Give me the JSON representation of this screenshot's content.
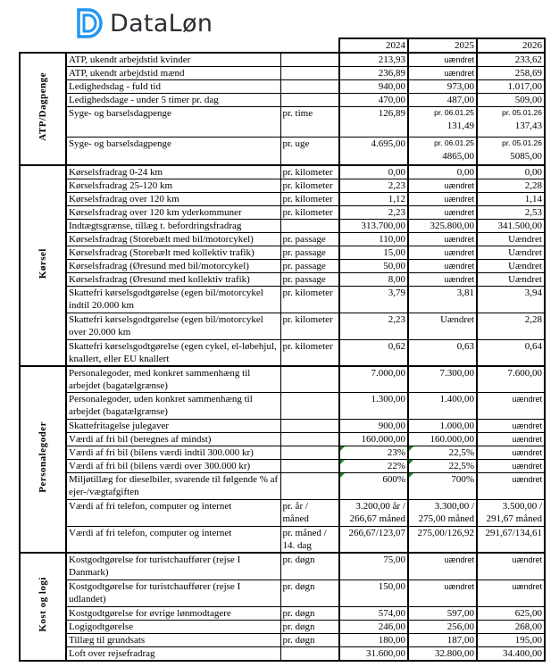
{
  "logo": {
    "text": "DataLøn",
    "brand_color": "#2196f3"
  },
  "header": {
    "years": [
      "2024",
      "2025",
      "2026"
    ]
  },
  "sections": [
    {
      "label": "ATP/Dagpenge",
      "rows": [
        {
          "desc": "ATP, ukendt arbejdstid kvinder",
          "unit": "",
          "v": [
            "213,93",
            "uændret",
            "233,62"
          ]
        },
        {
          "desc": "ATP, ukendt arbejdstid mænd",
          "unit": "",
          "v": [
            "236,89",
            "uændret",
            "258,69"
          ]
        },
        {
          "desc": "Ledighedsdag - fuld tid",
          "unit": "",
          "v": [
            "940,00",
            "973,00",
            "1.017,00"
          ]
        },
        {
          "desc": "Ledighedsdage - under 5 timer pr. dag",
          "unit": "",
          "v": [
            "470,00",
            "487,00",
            "509,00"
          ]
        },
        {
          "desc": "Syge- og barselsdagpenge",
          "unit": "pr. time",
          "v": [
            "126,89",
            {
              "note": "pr. 06.01.25",
              "value": "131,49"
            },
            {
              "note": "pr. 05.01.26",
              "value": "137,43"
            }
          ],
          "h": 34
        },
        {
          "desc": "Syge- og barselsdagpenge",
          "unit": "pr. uge",
          "v": [
            "4.695,00",
            {
              "note": "pr. 06.01.25",
              "value": "4865,00"
            },
            {
              "note": "pr. 05.01.26",
              "value": "5085,00"
            }
          ],
          "h": 31
        }
      ]
    },
    {
      "label": "Kørsel",
      "rows": [
        {
          "desc": "Kørselsfradrag 0-24 km",
          "unit": "pr. kilometer",
          "v": [
            "0,00",
            "0,00",
            "0,00"
          ]
        },
        {
          "desc": "Kørselsfradrag 25-120 km",
          "unit": "pr. kilometer",
          "v": [
            "2,23",
            "uændret",
            "2,28"
          ]
        },
        {
          "desc": "Kørselsfradrag over 120 km",
          "unit": "pr. kilometer",
          "v": [
            "1,12",
            "uændret",
            "1,14"
          ]
        },
        {
          "desc": "Kørselsfradrag over 120 km yderkommuner",
          "unit": "pr. kilometer",
          "v": [
            "2,23",
            "uændret",
            "2,53"
          ]
        },
        {
          "desc": "Indtægtsgrænse, tillæg t. befordringsfradrag",
          "unit": "",
          "v": [
            "313.700,00",
            "325.800,00",
            "341.500,00"
          ]
        },
        {
          "desc": "Kørselsfradrag (Storebælt med bil/motorcykel)",
          "unit": "pr. passage",
          "v": [
            "110,00",
            "uændret",
            "Uændret"
          ]
        },
        {
          "desc": "Kørselsfradrag (Storebælt med kollektiv trafik)",
          "unit": "pr. passage",
          "v": [
            "15,00",
            "uændret",
            "Uændret"
          ]
        },
        {
          "desc": "Kørselsfradrag (Øresund med bil/motorcykel)",
          "unit": "pr. passage",
          "v": [
            "50,00",
            "uændret",
            "Uændret"
          ]
        },
        {
          "desc": "Kørselsfradrag (Øresund med kollektiv trafik)",
          "unit": "pr. passage",
          "v": [
            "8,00",
            "uændret",
            "Uændret"
          ]
        },
        {
          "desc": "Skattefri kørselsgodtgørelse (egen bil/motorcykel indtil 20.000 km",
          "unit": "pr. kilometer",
          "v": [
            "3,79",
            "3,81",
            "3,94"
          ],
          "h": 30
        },
        {
          "desc": "Skattefri kørselsgodtgørelse (egen bil/motorcykel over 20.000 km",
          "unit": "pr. kilometer",
          "v": [
            "2,23",
            "Uændret",
            "2,28"
          ],
          "h": 30
        },
        {
          "desc": "Skattefri kørselsgodtgørelse (egen cykel, el-løbehjul, knallert, eller EU knallert",
          "unit": "pr. kilometer",
          "v": [
            "0,62",
            "0,63",
            "0,64"
          ],
          "h": 28
        }
      ]
    },
    {
      "label": "Personalegoder",
      "rows": [
        {
          "desc": "Personalegoder, med konkret sammenhæng til arbejdet (bagatælgrænse)",
          "unit": "",
          "v": [
            "7.000,00",
            "7.300,00",
            "7.600,00"
          ],
          "h": 30
        },
        {
          "desc": "Personalegoder, uden konkret sammenhæng til arbejdet (bagatælgrænse)",
          "unit": "",
          "v": [
            "1.300,00",
            "1.400,00",
            "uændret"
          ],
          "h": 30
        },
        {
          "desc": "Skattefritagelse julegaver",
          "unit": "",
          "v": [
            "900,00",
            "1.000,00",
            "uændret"
          ]
        },
        {
          "desc": "Værdi af fri bil (beregnes af mindst)",
          "unit": "",
          "v": [
            "160.000,00",
            "160.000,00",
            "uændret"
          ]
        },
        {
          "desc": "Værdi af fri bil (bilens værdi indtil 300.000 kr)",
          "unit": "",
          "v": [
            "23%",
            "22,5%",
            "uændret"
          ],
          "flag": true
        },
        {
          "desc": "Værdi af fri bil (bilens værdi over 300.000 kr)",
          "unit": "",
          "v": [
            "22%",
            "22,5%",
            "uændret"
          ],
          "flag": true
        },
        {
          "desc": "Miljøtillæg for dieselbiler, svarende til følgende % af ejer-/vægtafgiften",
          "unit": "",
          "v": [
            "600%",
            "700%",
            "uændret"
          ],
          "flag": true,
          "h": 30
        },
        {
          "desc": "Værdi af fri telefon, computer og internet",
          "unit": "pr. år /\nmåned",
          "v": [
            "3.200,00 år  /\n266,67 måned",
            "3.300,00 /\n275,00 måned",
            "3.500,00 /\n291,67 måned"
          ],
          "h": 30
        },
        {
          "desc": "Værdi af fri telefon, computer og internet",
          "unit": "pr. måned /\n14. dag",
          "v": [
            "266,67/123,07",
            "275,00/126,92",
            "291,67/134,61"
          ],
          "h": 28
        }
      ]
    },
    {
      "label": "Kost og logi",
      "rows": [
        {
          "desc": "Kostgodtgørelse for turistchauffører (rejse I Danmark)",
          "unit": "pr. døgn",
          "v": [
            "75,00",
            "uændret",
            "uændret"
          ],
          "h": 30
        },
        {
          "desc": "Kostgodtgørelse for turistchauffører (rejse I udlandet)",
          "unit": "pr. døgn",
          "v": [
            "150,00",
            "uændret",
            "uændret"
          ],
          "h": 30
        },
        {
          "desc": "Kostgodtgørelse for øvrige lønmodtagere",
          "unit": "pr. døgn",
          "v": [
            "574,00",
            "597,00",
            "625,00"
          ]
        },
        {
          "desc": "Logigodtgørelse",
          "unit": "pr. døgn",
          "v": [
            "246,00",
            "256,00",
            "268,00"
          ]
        },
        {
          "desc": "Tillæg til grundsats",
          "unit": "pr. døgn",
          "v": [
            "180,00",
            "187,00",
            "195,00"
          ]
        },
        {
          "desc": "Loft over rejsefradrag",
          "unit": "",
          "v": [
            "31.600,00",
            "32.800,00",
            "34.400,00"
          ]
        }
      ]
    }
  ]
}
